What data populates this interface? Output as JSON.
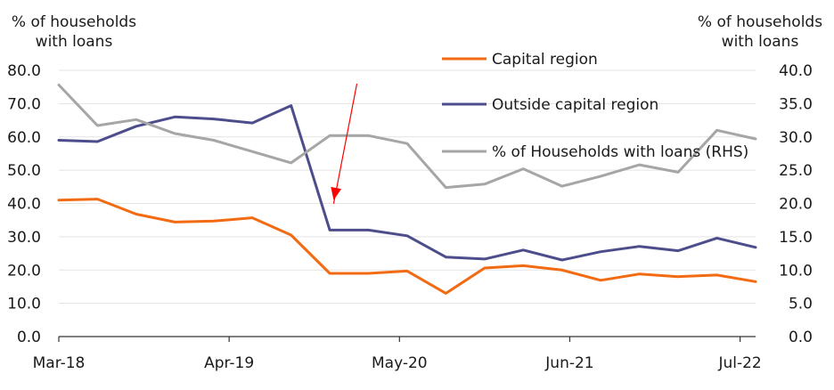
{
  "chart_data": {
    "type": "line",
    "ylabel_left": [
      "% of households",
      "with loans"
    ],
    "ylabel_right": [
      "% of households",
      "with loans"
    ],
    "ylim_left": [
      0,
      80
    ],
    "ylim_right": [
      0,
      40
    ],
    "yticks_left": [
      "0.0",
      "10.0",
      "20.0",
      "30.0",
      "40.0",
      "50.0",
      "60.0",
      "70.0",
      "80.0"
    ],
    "yticks_right": [
      "0.0",
      "5.0",
      "10.0",
      "15.0",
      "20.0",
      "25.0",
      "30.0",
      "35.0",
      "40.0"
    ],
    "x_tick_labels": [
      {
        "label": "Mar-18",
        "index": 0
      },
      {
        "label": "Apr-19",
        "index": 4.4
      },
      {
        "label": "May-20",
        "index": 8.8
      },
      {
        "label": "Jun-21",
        "index": 13.2
      },
      {
        "label": "Jul-22",
        "index": 17.6
      }
    ],
    "grid": "horizontal",
    "legend_position": "top-right",
    "series": [
      {
        "name": "Capital region",
        "axis": "left",
        "color": "#f26b12",
        "values": [
          41.0,
          41.3,
          36.8,
          34.4,
          34.7,
          35.7,
          30.5,
          19.0,
          19.0,
          19.7,
          13.0,
          20.6,
          21.3,
          20.0,
          16.9,
          18.8,
          18.0,
          18.5,
          16.5
        ]
      },
      {
        "name": "Outside capital region",
        "axis": "left",
        "color": "#4d4d8c",
        "values": [
          59.0,
          58.6,
          63.2,
          66.0,
          65.4,
          64.2,
          69.4,
          32.0,
          32.0,
          30.3,
          23.9,
          23.3,
          26.0,
          23.0,
          25.5,
          27.1,
          25.8,
          29.6,
          26.8
        ]
      },
      {
        "name": "% of Households with loans (RHS)",
        "axis": "right",
        "color": "#a6a6a6",
        "values": [
          37.8,
          31.7,
          32.6,
          30.5,
          29.5,
          27.8,
          26.1,
          30.2,
          30.2,
          29.0,
          22.4,
          22.9,
          25.2,
          22.6,
          24.1,
          25.8,
          24.7,
          31.0,
          29.7
        ]
      }
    ],
    "annotation": {
      "type": "arrow",
      "color": "#ff0000",
      "from_index": 7.7,
      "from_value_left": 76.0,
      "to_index": 7.1,
      "to_value_left": 41.0
    }
  }
}
